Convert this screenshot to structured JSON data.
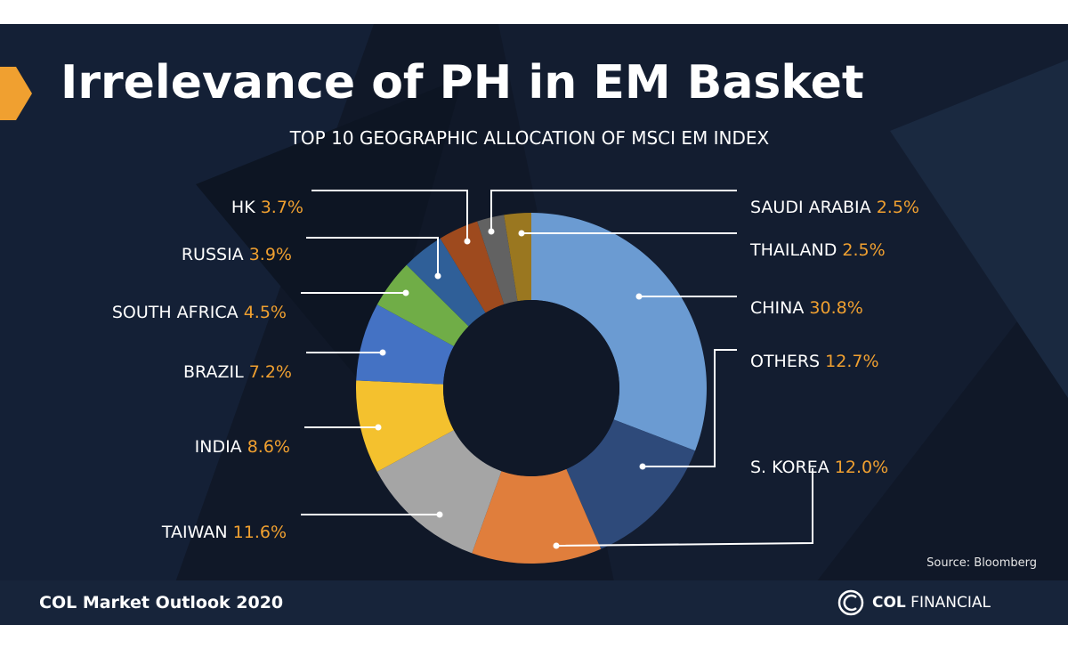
{
  "slide": {
    "title": "Irrelevance of PH in EM Basket",
    "source": "Source: Bloomberg",
    "footer": "COL Market Outlook 2020",
    "logo_bold": "COL",
    "logo_light": "FINANCIAL"
  },
  "colors": {
    "background": "#101828",
    "accent": "#f0a030",
    "value_text": "#f0a030",
    "footer": "#17243a"
  },
  "chart_data": {
    "type": "pie",
    "donut": true,
    "title": "TOP 10 GEOGRAPHIC ALLOCATION OF MSCI EM INDEX",
    "unit": "%",
    "slices": [
      {
        "label": "CHINA",
        "value": 30.8,
        "display": "30.8%",
        "color": "#6b9bd2",
        "label_side": "right"
      },
      {
        "label": "OTHERS",
        "value": 12.7,
        "display": "12.7%",
        "color": "#2e4a7a",
        "label_side": "right"
      },
      {
        "label": "S. KOREA",
        "value": 12.0,
        "display": "12.0%",
        "color": "#e07e3c",
        "label_side": "right"
      },
      {
        "label": "TAIWAN",
        "value": 11.6,
        "display": "11.6%",
        "color": "#a5a5a5",
        "label_side": "left"
      },
      {
        "label": "INDIA",
        "value": 8.6,
        "display": "8.6%",
        "color": "#f4c12e",
        "label_side": "left"
      },
      {
        "label": "BRAZIL",
        "value": 7.2,
        "display": "7.2%",
        "color": "#4472c4",
        "label_side": "left"
      },
      {
        "label": "SOUTH AFRICA",
        "value": 4.5,
        "display": "4.5%",
        "color": "#70ad47",
        "label_side": "left"
      },
      {
        "label": "RUSSIA",
        "value": 3.9,
        "display": "3.9%",
        "color": "#2f5f98",
        "label_side": "left"
      },
      {
        "label": "HK",
        "value": 3.7,
        "display": "3.7%",
        "color": "#9e4a1e",
        "label_side": "left"
      },
      {
        "label": "SAUDI ARABIA",
        "value": 2.5,
        "display": "2.5%",
        "color": "#626262",
        "label_side": "right"
      },
      {
        "label": "THAILAND",
        "value": 2.5,
        "display": "2.5%",
        "color": "#9a7720",
        "label_side": "right"
      }
    ]
  }
}
